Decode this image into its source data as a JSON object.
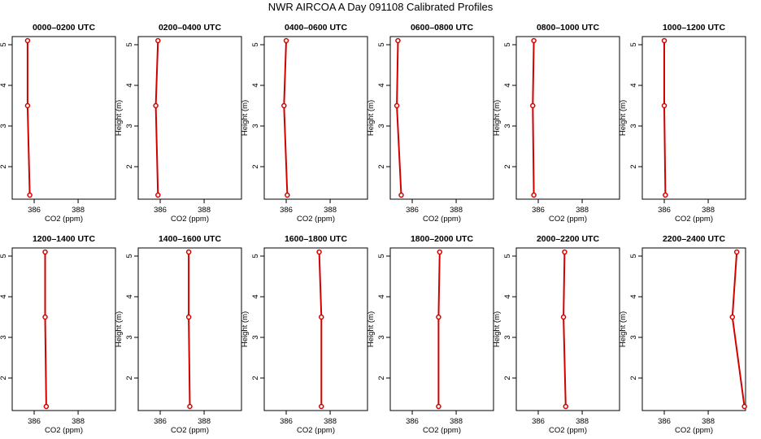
{
  "figure": {
    "title": "NWR AIRCOA A  Day 091108  Calibrated Profiles",
    "series_color": "#d40000"
  },
  "chart_data": [
    {
      "type": "line",
      "title": "0000–0200 UTC",
      "xlabel": "CO2 (ppm)",
      "ylabel": "Height (m)",
      "xlim": [
        385.0,
        389.7
      ],
      "ylim": [
        1.2,
        5.2
      ],
      "xticks": [
        386,
        388
      ],
      "yticks": [
        2,
        3,
        4,
        5
      ],
      "points": [
        {
          "x": 385.7,
          "y": 5.1
        },
        {
          "x": 385.7,
          "y": 3.5
        },
        {
          "x": 385.8,
          "y": 1.3
        }
      ]
    },
    {
      "type": "line",
      "title": "0200–0400 UTC",
      "xlabel": "CO2 (ppm)",
      "ylabel": "Height (m)",
      "xlim": [
        385.0,
        389.7
      ],
      "ylim": [
        1.2,
        5.2
      ],
      "xticks": [
        386,
        388
      ],
      "yticks": [
        2,
        3,
        4,
        5
      ],
      "points": [
        {
          "x": 385.9,
          "y": 5.1
        },
        {
          "x": 385.8,
          "y": 3.5
        },
        {
          "x": 385.9,
          "y": 1.3
        }
      ]
    },
    {
      "type": "line",
      "title": "0400–0600 UTC",
      "xlabel": "CO2 (ppm)",
      "ylabel": "Height (m)",
      "xlim": [
        385.0,
        389.7
      ],
      "ylim": [
        1.2,
        5.2
      ],
      "xticks": [
        386,
        388
      ],
      "yticks": [
        2,
        3,
        4,
        5
      ],
      "points": [
        {
          "x": 386.0,
          "y": 5.1
        },
        {
          "x": 385.9,
          "y": 3.5
        },
        {
          "x": 386.05,
          "y": 1.3
        }
      ]
    },
    {
      "type": "line",
      "title": "0600–0800 UTC",
      "xlabel": "CO2 (ppm)",
      "ylabel": "Height (m)",
      "xlim": [
        385.0,
        389.7
      ],
      "ylim": [
        1.2,
        5.2
      ],
      "xticks": [
        386,
        388
      ],
      "yticks": [
        2,
        3,
        4,
        5
      ],
      "points": [
        {
          "x": 385.35,
          "y": 5.1
        },
        {
          "x": 385.3,
          "y": 3.5
        },
        {
          "x": 385.5,
          "y": 1.3
        }
      ]
    },
    {
      "type": "line",
      "title": "0800–1000 UTC",
      "xlabel": "CO2 (ppm)",
      "ylabel": "Height (m)",
      "xlim": [
        385.0,
        389.7
      ],
      "ylim": [
        1.2,
        5.2
      ],
      "xticks": [
        386,
        388
      ],
      "yticks": [
        2,
        3,
        4,
        5
      ],
      "points": [
        {
          "x": 385.8,
          "y": 5.1
        },
        {
          "x": 385.75,
          "y": 3.5
        },
        {
          "x": 385.8,
          "y": 1.3
        }
      ]
    },
    {
      "type": "line",
      "title": "1000–1200 UTC",
      "xlabel": "CO2 (ppm)",
      "ylabel": "Height (m)",
      "xlim": [
        385.0,
        389.7
      ],
      "ylim": [
        1.2,
        5.2
      ],
      "xticks": [
        386,
        388
      ],
      "yticks": [
        2,
        3,
        4,
        5
      ],
      "points": [
        {
          "x": 386.0,
          "y": 5.1
        },
        {
          "x": 386.0,
          "y": 3.5
        },
        {
          "x": 386.05,
          "y": 1.3
        }
      ]
    },
    {
      "type": "line",
      "title": "1200–1400 UTC",
      "xlabel": "CO2 (ppm)",
      "ylabel": "Height (m)",
      "xlim": [
        385.0,
        389.7
      ],
      "ylim": [
        1.2,
        5.2
      ],
      "xticks": [
        386,
        388
      ],
      "yticks": [
        2,
        3,
        4,
        5
      ],
      "points": [
        {
          "x": 386.5,
          "y": 5.1
        },
        {
          "x": 386.5,
          "y": 3.5
        },
        {
          "x": 386.55,
          "y": 1.3
        }
      ]
    },
    {
      "type": "line",
      "title": "1400–1600 UTC",
      "xlabel": "CO2 (ppm)",
      "ylabel": "Height (m)",
      "xlim": [
        385.0,
        389.7
      ],
      "ylim": [
        1.2,
        5.2
      ],
      "xticks": [
        386,
        388
      ],
      "yticks": [
        2,
        3,
        4,
        5
      ],
      "points": [
        {
          "x": 387.3,
          "y": 5.1
        },
        {
          "x": 387.3,
          "y": 3.5
        },
        {
          "x": 387.35,
          "y": 1.3
        }
      ]
    },
    {
      "type": "line",
      "title": "1600–1800 UTC",
      "xlabel": "CO2 (ppm)",
      "ylabel": "Height (m)",
      "xlim": [
        385.0,
        389.7
      ],
      "ylim": [
        1.2,
        5.2
      ],
      "xticks": [
        386,
        388
      ],
      "yticks": [
        2,
        3,
        4,
        5
      ],
      "points": [
        {
          "x": 387.5,
          "y": 5.1
        },
        {
          "x": 387.6,
          "y": 3.5
        },
        {
          "x": 387.6,
          "y": 1.3
        }
      ]
    },
    {
      "type": "line",
      "title": "1800–2000 UTC",
      "xlabel": "CO2 (ppm)",
      "ylabel": "Height (m)",
      "xlim": [
        385.0,
        389.7
      ],
      "ylim": [
        1.2,
        5.2
      ],
      "xticks": [
        386,
        388
      ],
      "yticks": [
        2,
        3,
        4,
        5
      ],
      "points": [
        {
          "x": 387.25,
          "y": 5.1
        },
        {
          "x": 387.2,
          "y": 3.5
        },
        {
          "x": 387.2,
          "y": 1.3
        }
      ]
    },
    {
      "type": "line",
      "title": "2000–2200 UTC",
      "xlabel": "CO2 (ppm)",
      "ylabel": "Height (m)",
      "xlim": [
        385.0,
        389.7
      ],
      "ylim": [
        1.2,
        5.2
      ],
      "xticks": [
        386,
        388
      ],
      "yticks": [
        2,
        3,
        4,
        5
      ],
      "points": [
        {
          "x": 387.2,
          "y": 5.1
        },
        {
          "x": 387.15,
          "y": 3.5
        },
        {
          "x": 387.25,
          "y": 1.3
        }
      ]
    },
    {
      "type": "line",
      "title": "2200–2400 UTC",
      "xlabel": "CO2 (ppm)",
      "ylabel": "Height (m)",
      "xlim": [
        385.0,
        389.7
      ],
      "ylim": [
        1.2,
        5.2
      ],
      "xticks": [
        386,
        388
      ],
      "yticks": [
        2,
        3,
        4,
        5
      ],
      "points": [
        {
          "x": 389.3,
          "y": 5.1
        },
        {
          "x": 389.1,
          "y": 3.5
        },
        {
          "x": 389.65,
          "y": 1.3
        }
      ]
    }
  ]
}
